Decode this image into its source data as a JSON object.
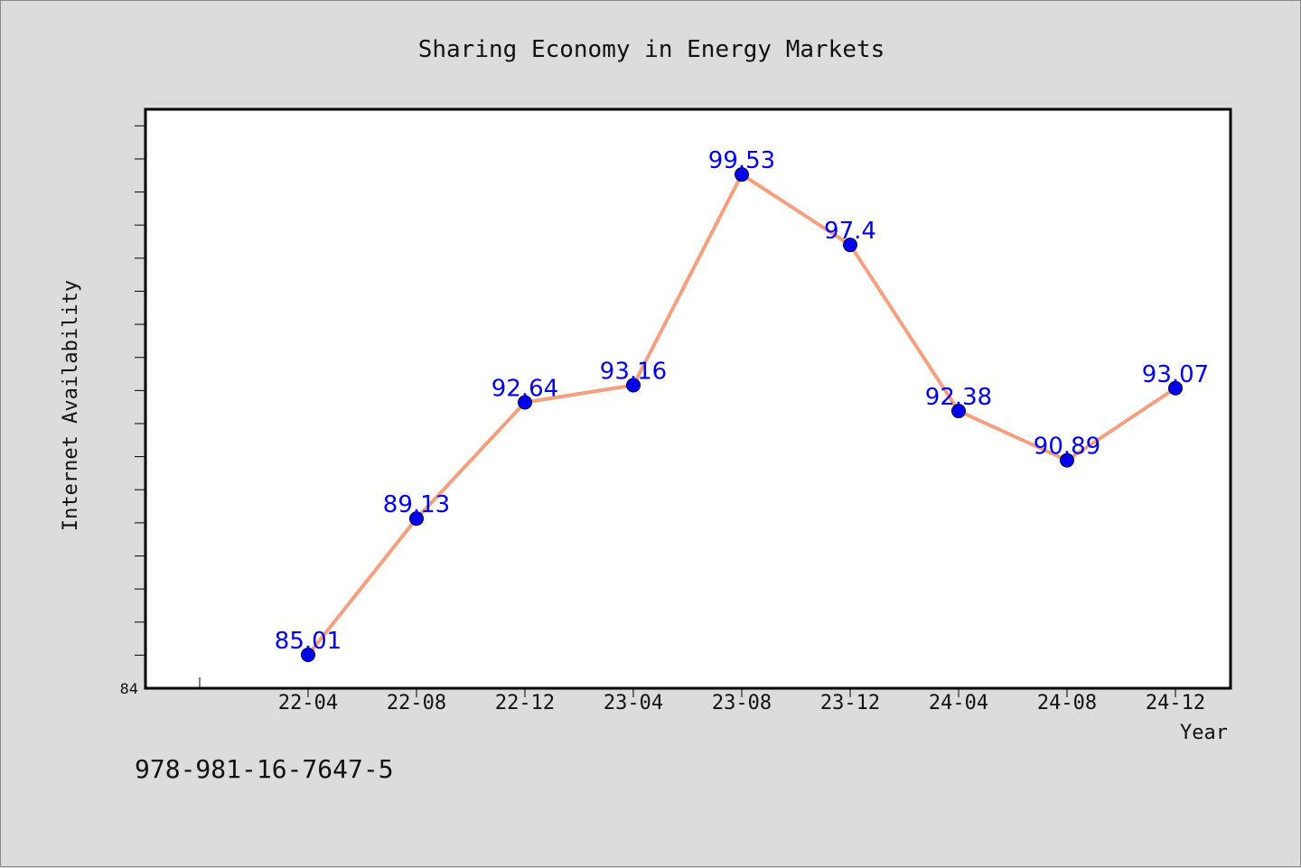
{
  "chart_data": {
    "type": "line",
    "title": "Sharing Economy in Energy Markets",
    "xlabel": "Year",
    "ylabel": "Internet Availability",
    "categories": [
      "22-04",
      "22-08",
      "22-12",
      "23-04",
      "23-08",
      "23-12",
      "24-04",
      "24-08",
      "24-12"
    ],
    "series": [
      {
        "values": [
          85.01,
          89.13,
          92.64,
          93.16,
          99.53,
          97.4,
          92.38,
          90.89,
          93.07
        ],
        "data_labels": [
          "85.01",
          "89.13",
          "92.64",
          "93.16",
          "99.53",
          "97.4",
          "92.38",
          "90.89",
          "93.07"
        ],
        "line_color": "#f4a07e",
        "marker_color": "#0000ee",
        "label_color": "#0000ee"
      }
    ],
    "ylim": [
      84,
      101.5
    ],
    "ytick_labels": [
      "84"
    ],
    "grid": false,
    "plot_background": "#ffffff",
    "figure_background": "#dcdcdc"
  },
  "footer": {
    "code": "978-981-16-7647-5"
  }
}
